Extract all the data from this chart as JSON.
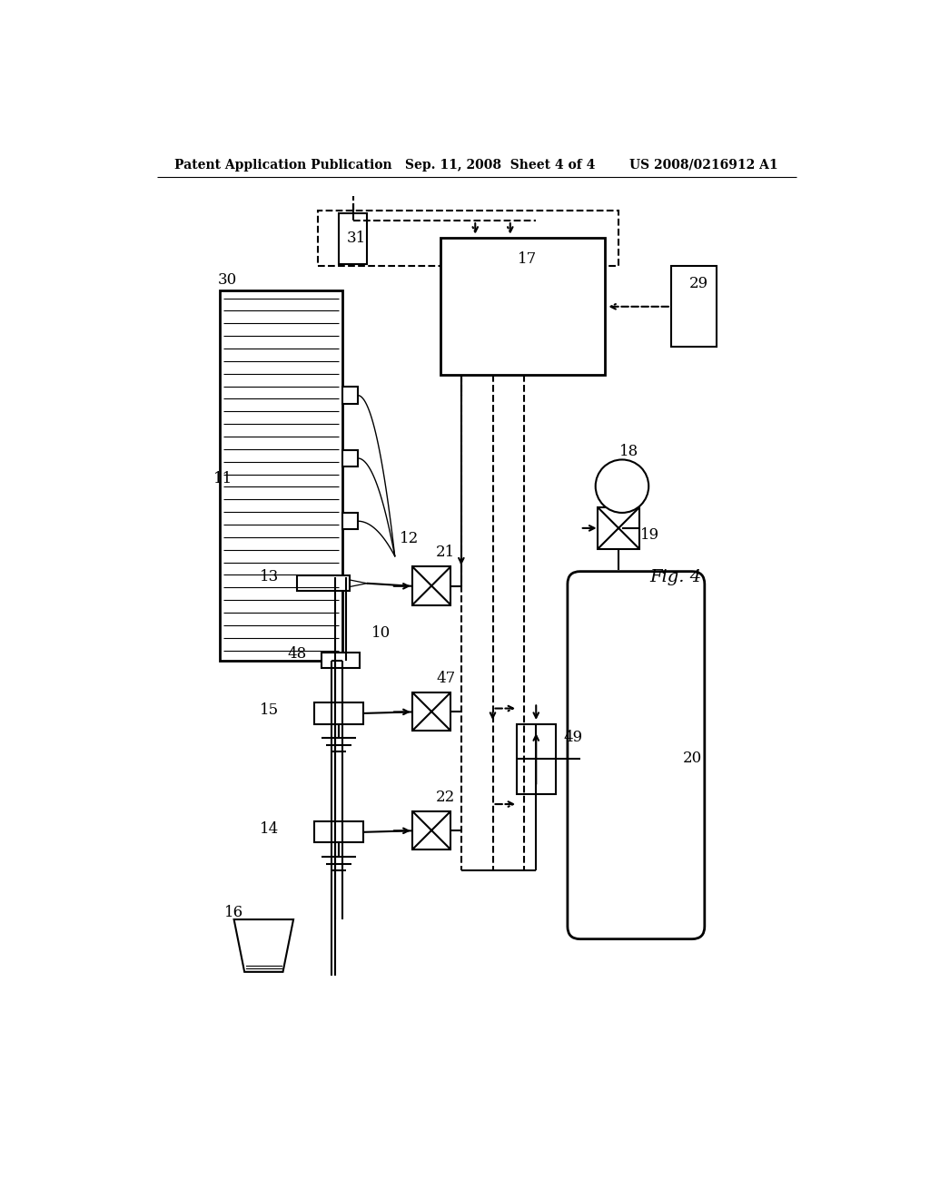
{
  "bg_color": "#ffffff",
  "header_left": "Patent Application Publication",
  "header_center": "Sep. 11, 2008  Sheet 4 of 4",
  "header_right": "US 2008/0216912 A1",
  "fig_label": "Fig. 4"
}
